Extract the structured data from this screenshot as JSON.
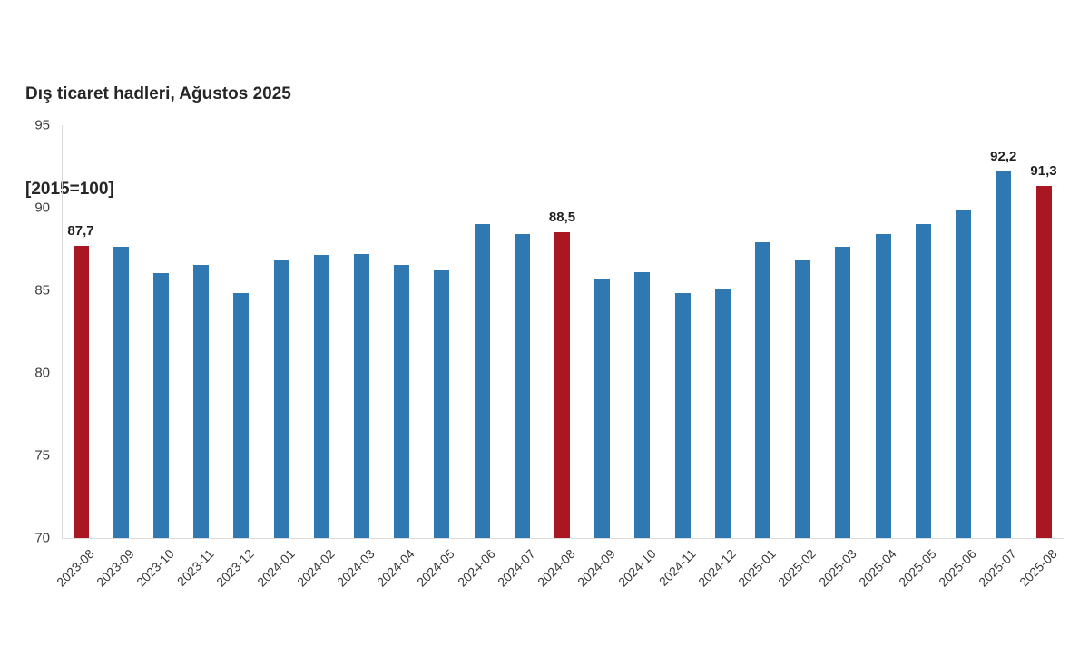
{
  "title": {
    "line1": "Dış ticaret hadleri, Ağustos 2025",
    "line2": "[2015=100]"
  },
  "chart_data": {
    "type": "bar",
    "title": "Dış ticaret hadleri, Ağustos 2025",
    "subtitle": "[2015=100]",
    "xlabel": "",
    "ylabel": "",
    "categories": [
      "2023-08",
      "2023-09",
      "2023-10",
      "2023-11",
      "2023-12",
      "2024-01",
      "2024-02",
      "2024-03",
      "2024-04",
      "2024-05",
      "2024-06",
      "2024-07",
      "2024-08",
      "2024-09",
      "2024-10",
      "2024-11",
      "2024-12",
      "2025-01",
      "2025-02",
      "2025-03",
      "2025-04",
      "2025-05",
      "2025-06",
      "2025-07",
      "2025-08"
    ],
    "values": [
      87.7,
      87.6,
      86.0,
      86.5,
      84.8,
      86.8,
      87.1,
      87.2,
      86.5,
      86.2,
      89.0,
      88.4,
      88.5,
      85.7,
      86.1,
      84.8,
      85.1,
      87.9,
      86.8,
      87.6,
      88.4,
      89.0,
      89.8,
      92.2,
      91.3
    ],
    "value_labels": [
      {
        "index": 0,
        "text": "87,7"
      },
      {
        "index": 12,
        "text": "88,5"
      },
      {
        "index": 23,
        "text": "92,2"
      },
      {
        "index": 24,
        "text": "91,3"
      }
    ],
    "highlight_indices": [
      0,
      12,
      24
    ],
    "colors": {
      "bar_default": "#2f78b2",
      "bar_highlight": "#a81722",
      "axis_line": "#d9d9d9",
      "tick_text": "#3d3d3d",
      "value_label_text": "#1f1f1f"
    },
    "ylim": [
      70,
      95
    ],
    "yticks": [
      95,
      90,
      85,
      80,
      75,
      70
    ],
    "grid": false,
    "legend": null
  }
}
